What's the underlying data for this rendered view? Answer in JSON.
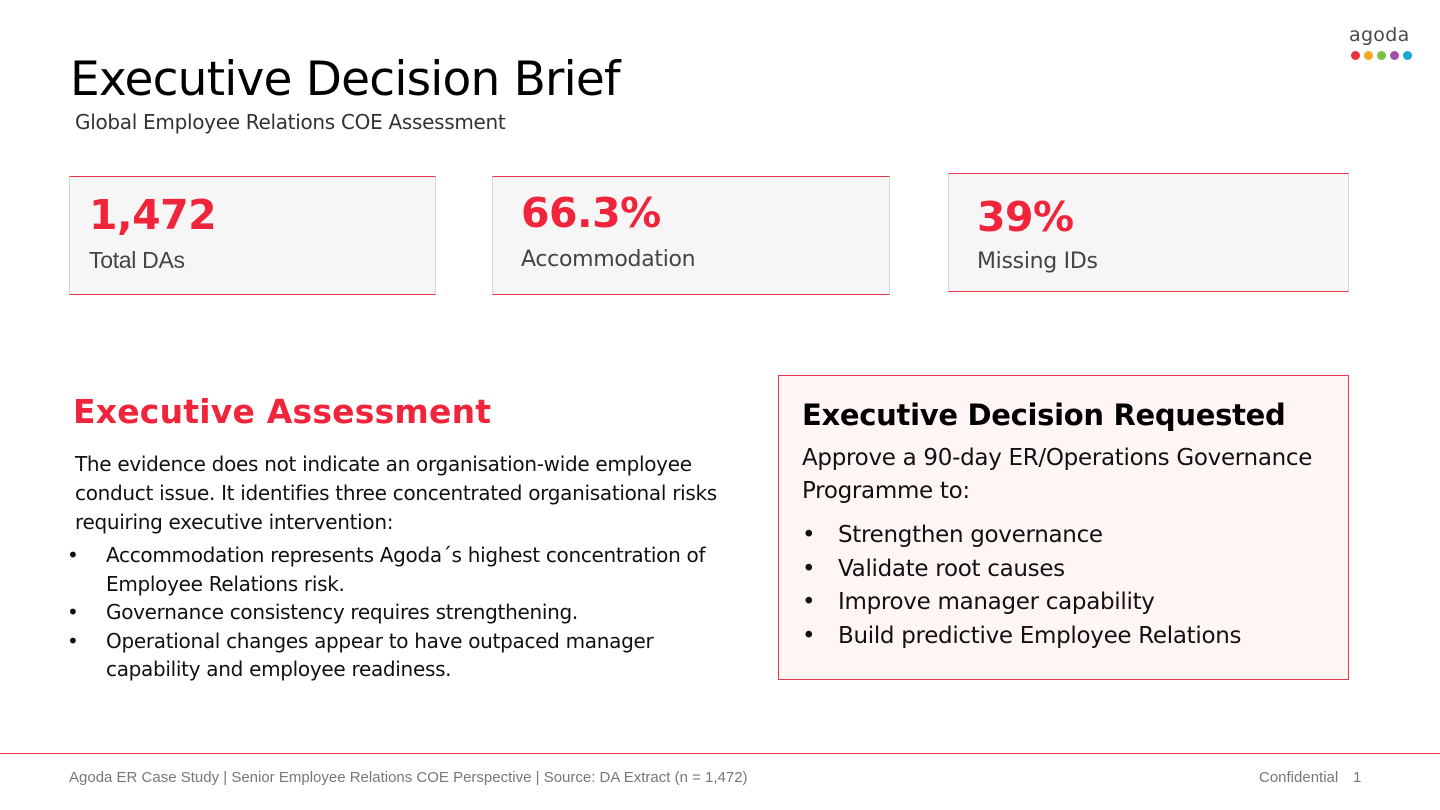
{
  "brand": {
    "logo_text": "agoda",
    "dot_colors": [
      "#e8343f",
      "#f5a623",
      "#7ac142",
      "#a04ea8",
      "#1aa5d9"
    ]
  },
  "header": {
    "title": "Executive Decision Brief",
    "subtitle": "Global Employee Relations COE Assessment"
  },
  "kpis": [
    {
      "value": "1,472",
      "label": "Total DAs"
    },
    {
      "value": "66.3%",
      "label": "Accommodation"
    },
    {
      "value": "39%",
      "label": "Missing IDs"
    }
  ],
  "assessment": {
    "heading": "Executive Assessment",
    "intro": "The evidence does not indicate an organisation-wide employee conduct issue. It identifies three concentrated organisational risks requiring executive intervention:",
    "bullet_glyph": "•",
    "points": [
      "Accommodation represents Agoda´s highest concentration of Employee Relations risk.",
      "Governance consistency requires strengthening.",
      "Operational changes appear to have outpaced manager capability and employee readiness."
    ]
  },
  "decision": {
    "heading": "Executive Decision Requested",
    "intro": "Approve a 90-day ER/Operations Governance Programme to:",
    "bullet_glyph": "•",
    "points": [
      "Strengthen governance",
      "Validate root causes",
      "Improve manager capability",
      "Build predictive Employee Relations"
    ]
  },
  "footer": {
    "source": "Agoda ER Case Study | Senior Employee Relations COE Perspective | Source: DA Extract (n = 1,472)",
    "classification": "Confidential",
    "page_number": "1"
  },
  "colors": {
    "accent": "#f0243b",
    "border": "#e5394b",
    "decision_bg": "#fff5f5"
  }
}
